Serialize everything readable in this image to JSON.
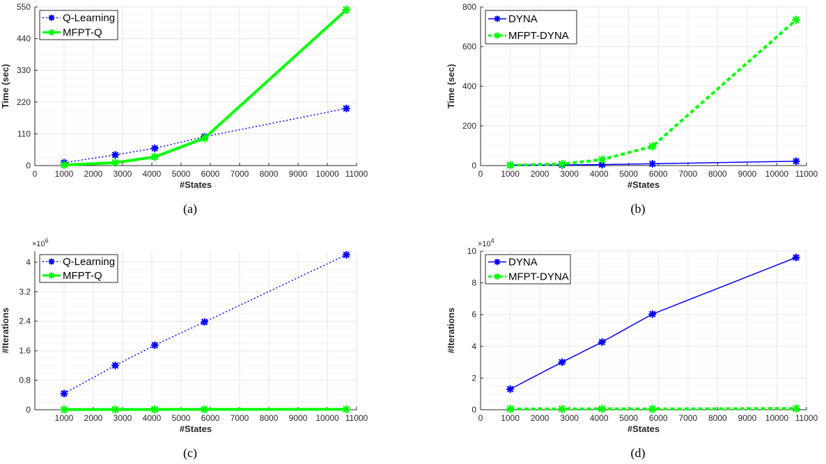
{
  "chart_data": [
    {
      "type": "line",
      "caption": "(a)",
      "xlabel": "#States",
      "ylabel": "Time (sec)",
      "xlim": [
        0,
        11000
      ],
      "ylim": [
        0,
        550
      ],
      "xticks": [
        0,
        1000,
        2000,
        3000,
        4000,
        5000,
        6000,
        7000,
        8000,
        9000,
        10000,
        11000
      ],
      "yticks": [
        0,
        110,
        220,
        330,
        440,
        550
      ],
      "exponent": "",
      "grid": true,
      "legend_position": "top-left",
      "x": [
        1000,
        2750,
        4100,
        5800,
        10650
      ],
      "series": [
        {
          "name": "Q-Learning",
          "values": [
            10,
            37,
            60,
            100,
            198
          ],
          "color": "#0000ff",
          "style": "dotted",
          "width": 1.5
        },
        {
          "name": "MFPT-Q",
          "values": [
            2,
            10,
            30,
            95,
            540
          ],
          "color": "#00ff00",
          "style": "solid",
          "width": 4
        }
      ]
    },
    {
      "type": "line",
      "caption": "(b)",
      "xlabel": "#States",
      "ylabel": "Time (sec)",
      "xlim": [
        0,
        11000
      ],
      "ylim": [
        0,
        800
      ],
      "xticks": [
        0,
        1000,
        2000,
        3000,
        4000,
        5000,
        6000,
        7000,
        8000,
        9000,
        10000,
        11000
      ],
      "yticks": [
        0,
        200,
        400,
        600,
        800
      ],
      "exponent": "",
      "grid": true,
      "legend_position": "top-left",
      "x": [
        1000,
        2750,
        4100,
        5800,
        10650
      ],
      "series": [
        {
          "name": "DYNA",
          "values": [
            2,
            3,
            5,
            9,
            22
          ],
          "color": "#0000ff",
          "style": "solid",
          "width": 1.5
        },
        {
          "name": "MFPT-DYNA",
          "values": [
            2,
            8,
            30,
            97,
            735
          ],
          "color": "#00ff00",
          "style": "dotted",
          "width": 4
        }
      ]
    },
    {
      "type": "line",
      "caption": "(c)",
      "xlabel": "#States",
      "ylabel": "#Iterations",
      "xlim": [
        0,
        11000
      ],
      "ylim": [
        0,
        4.3
      ],
      "xticks": [
        1000,
        2000,
        3000,
        4000,
        5000,
        6000,
        7000,
        8000,
        9000,
        10000,
        11000
      ],
      "yticks": [
        0,
        0.8,
        1.6,
        2.4,
        3.2,
        4
      ],
      "exponent": "×10^6",
      "exponent_base": "×10",
      "exponent_power": "6",
      "grid": true,
      "legend_position": "top-left",
      "x": [
        1000,
        2750,
        4100,
        5800,
        10650
      ],
      "series": [
        {
          "name": "Q-Learning",
          "values": [
            0.44,
            1.2,
            1.75,
            2.38,
            4.2
          ],
          "color": "#0000ff",
          "style": "dotted",
          "width": 1.5
        },
        {
          "name": "MFPT-Q",
          "values": [
            0.005,
            0.007,
            0.008,
            0.009,
            0.012
          ],
          "color": "#00ff00",
          "style": "solid",
          "width": 4
        }
      ]
    },
    {
      "type": "line",
      "caption": "(d)",
      "xlabel": "#States",
      "ylabel": "#Iterations",
      "xlim": [
        0,
        11000
      ],
      "ylim": [
        0,
        10
      ],
      "xticks": [
        0,
        1000,
        2000,
        3000,
        4000,
        5000,
        6000,
        7000,
        8000,
        9000,
        10000,
        11000
      ],
      "yticks": [
        0,
        2,
        4,
        6,
        8,
        10
      ],
      "exponent": "×10^4",
      "exponent_base": "×10",
      "exponent_power": "4",
      "grid": true,
      "legend_position": "top-left",
      "x": [
        1000,
        2750,
        4100,
        5800,
        10650
      ],
      "series": [
        {
          "name": "DYNA",
          "values": [
            1.3,
            3.0,
            4.27,
            6.03,
            9.6
          ],
          "color": "#0000ff",
          "style": "solid",
          "width": 1.5
        },
        {
          "name": "MFPT-DYNA",
          "values": [
            0.05,
            0.05,
            0.06,
            0.05,
            0.08
          ],
          "color": "#00ff00",
          "style": "dotted",
          "width": 4
        }
      ]
    }
  ]
}
